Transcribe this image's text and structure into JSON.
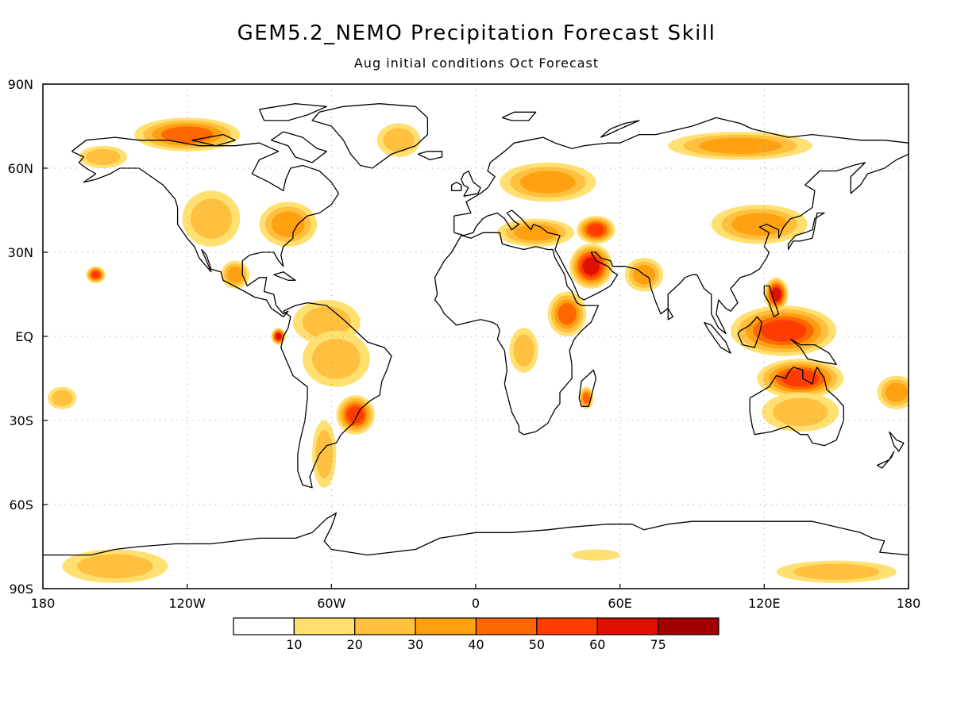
{
  "title": "GEM5.2_NEMO Precipitation Forecast Skill",
  "subtitle": "Aug initial conditions  Oct Forecast",
  "map": {
    "projection": "cylindrical-equidistant",
    "lon_range": [
      -180,
      180
    ],
    "lat_range": [
      -90,
      90
    ],
    "grid": "dotted",
    "coastlines": "black"
  },
  "axes": {
    "x_ticks": [
      {
        "value": -180,
        "label": "180"
      },
      {
        "value": -120,
        "label": "120W"
      },
      {
        "value": -60,
        "label": "60W"
      },
      {
        "value": 0,
        "label": "0"
      },
      {
        "value": 60,
        "label": "60E"
      },
      {
        "value": 120,
        "label": "120E"
      },
      {
        "value": 180,
        "label": "180"
      }
    ],
    "y_ticks": [
      {
        "value": 90,
        "label": "90N"
      },
      {
        "value": 60,
        "label": "60N"
      },
      {
        "value": 30,
        "label": "30N"
      },
      {
        "value": 0,
        "label": "EQ"
      },
      {
        "value": -30,
        "label": "30S"
      },
      {
        "value": -60,
        "label": "60S"
      },
      {
        "value": -90,
        "label": "90S"
      }
    ]
  },
  "colorbar": {
    "levels": [
      "10",
      "20",
      "30",
      "40",
      "50",
      "60",
      "75"
    ],
    "colors": [
      "#ffffff",
      "#ffe070",
      "#ffc040",
      "#ffa010",
      "#ff6800",
      "#ff3c00",
      "#e01000",
      "#a00000"
    ]
  },
  "skill_regions": [
    {
      "name": "canadian-archipelago",
      "lon": -120,
      "lat": 72,
      "rx": 22,
      "ry": 6,
      "level": 4
    },
    {
      "name": "alaska",
      "lon": -155,
      "lat": 64,
      "rx": 10,
      "ry": 4,
      "level": 2
    },
    {
      "name": "greenland-east",
      "lon": -32,
      "lat": 70,
      "rx": 9,
      "ry": 6,
      "level": 2
    },
    {
      "name": "western-north-america",
      "lon": -110,
      "lat": 42,
      "rx": 12,
      "ry": 10,
      "level": 2
    },
    {
      "name": "eastern-us",
      "lon": -78,
      "lat": 40,
      "rx": 12,
      "ry": 8,
      "level": 3
    },
    {
      "name": "mexico",
      "lon": -100,
      "lat": 22,
      "rx": 6,
      "ry": 5,
      "level": 3
    },
    {
      "name": "hawaii",
      "lon": -158,
      "lat": 22,
      "rx": 4,
      "ry": 3,
      "level": 5
    },
    {
      "name": "tropical-americas",
      "lon": -62,
      "lat": 5,
      "rx": 14,
      "ry": 8,
      "level": 2
    },
    {
      "name": "ecuador",
      "lon": -82,
      "lat": 0,
      "rx": 3,
      "ry": 3,
      "level": 6
    },
    {
      "name": "amazon",
      "lon": -58,
      "lat": -8,
      "rx": 14,
      "ry": 10,
      "level": 2
    },
    {
      "name": "south-brazil",
      "lon": -50,
      "lat": -28,
      "rx": 8,
      "ry": 7,
      "level": 5
    },
    {
      "name": "argentina",
      "lon": -63,
      "lat": -42,
      "rx": 5,
      "ry": 12,
      "level": 2
    },
    {
      "name": "south-pacific-east",
      "lon": -172,
      "lat": -22,
      "rx": 6,
      "ry": 4,
      "level": 2
    },
    {
      "name": "europe",
      "lon": 30,
      "lat": 55,
      "rx": 20,
      "ry": 7,
      "level": 3
    },
    {
      "name": "mediterranean",
      "lon": 25,
      "lat": 37,
      "rx": 16,
      "ry": 5,
      "level": 3
    },
    {
      "name": "arabia",
      "lon": 48,
      "lat": 25,
      "rx": 9,
      "ry": 8,
      "level": 6
    },
    {
      "name": "iran",
      "lon": 50,
      "lat": 38,
      "rx": 8,
      "ry": 5,
      "level": 5
    },
    {
      "name": "east-africa",
      "lon": 38,
      "lat": 8,
      "rx": 8,
      "ry": 8,
      "level": 4
    },
    {
      "name": "central-africa",
      "lon": 20,
      "lat": -5,
      "rx": 6,
      "ry": 8,
      "level": 2
    },
    {
      "name": "madagascar",
      "lon": 46,
      "lat": -22,
      "rx": 3,
      "ry": 4,
      "level": 4
    },
    {
      "name": "siberia",
      "lon": 110,
      "lat": 68,
      "rx": 30,
      "ry": 5,
      "level": 3
    },
    {
      "name": "east-asia",
      "lon": 118,
      "lat": 40,
      "rx": 20,
      "ry": 7,
      "level": 3
    },
    {
      "name": "india",
      "lon": 70,
      "lat": 22,
      "rx": 8,
      "ry": 6,
      "level": 3
    },
    {
      "name": "maritime-continent",
      "lon": 128,
      "lat": 2,
      "rx": 22,
      "ry": 9,
      "level": 5
    },
    {
      "name": "philippines",
      "lon": 125,
      "lat": 15,
      "rx": 5,
      "ry": 6,
      "level": 6
    },
    {
      "name": "north-australia",
      "lon": 135,
      "lat": -15,
      "rx": 18,
      "ry": 7,
      "level": 5
    },
    {
      "name": "australia",
      "lon": 135,
      "lat": -27,
      "rx": 16,
      "ry": 7,
      "level": 2
    },
    {
      "name": "south-pacific-west",
      "lon": 175,
      "lat": -20,
      "rx": 8,
      "ry": 6,
      "level": 3
    },
    {
      "name": "antarctica-west",
      "lon": -150,
      "lat": -82,
      "rx": 22,
      "ry": 6,
      "level": 2
    },
    {
      "name": "antarctica-east",
      "lon": 150,
      "lat": -84,
      "rx": 25,
      "ry": 4,
      "level": 2
    },
    {
      "name": "antarctica-atlantic",
      "lon": 50,
      "lat": -78,
      "rx": 10,
      "ry": 2,
      "level": 1
    }
  ]
}
